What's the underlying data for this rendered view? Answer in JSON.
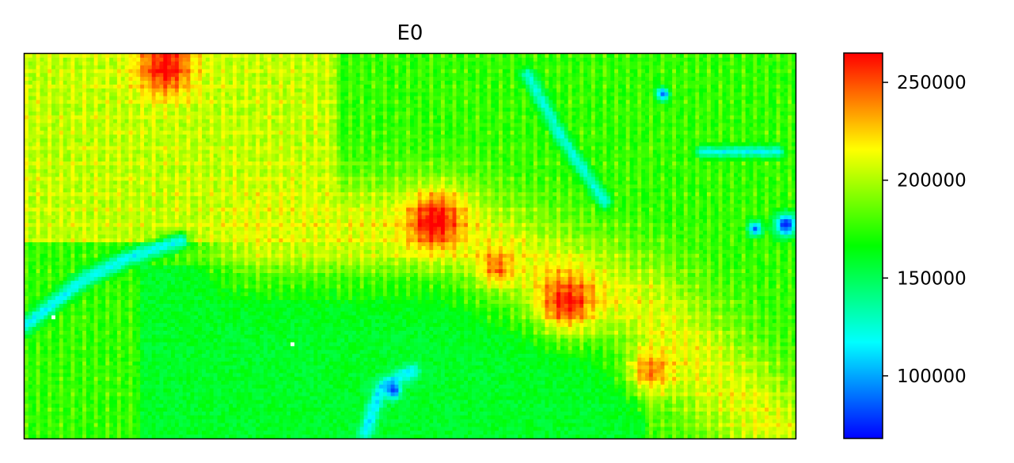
{
  "chart_data": {
    "type": "heatmap",
    "title": "E0",
    "xlabel": "",
    "ylabel": "",
    "x_ticks_visible": false,
    "y_ticks_visible": false,
    "colormap": "gist_rainbow_r",
    "colormap_stops": [
      "#0000ff",
      "#00ffff",
      "#00ff00",
      "#ffff00",
      "#ff0000"
    ],
    "colorbar": {
      "min": 68000,
      "max": 265000,
      "ticks": [
        100000,
        150000,
        200000,
        250000
      ],
      "tick_labels": [
        "100000",
        "150000",
        "200000",
        "250000"
      ]
    },
    "grid": {
      "rows": 100,
      "cols": 200
    },
    "background_value": 172000,
    "features": [
      {
        "kind": "region",
        "desc": "lower-left low basin",
        "c": [
          30,
          160
        ],
        "r": [
          55,
          100
        ],
        "value": 150000
      },
      {
        "kind": "ridge",
        "desc": "upper-left high band",
        "c": [
          0,
          80
        ],
        "r": [
          0,
          48
        ],
        "value": 205000
      },
      {
        "kind": "ridge",
        "desc": "diagonal high corridor",
        "path": [
          [
            60,
            45
          ],
          [
            110,
            45
          ],
          [
            140,
            58
          ],
          [
            160,
            65
          ],
          [
            180,
            85
          ],
          [
            195,
            98
          ]
        ],
        "width": 9,
        "value": 205000
      },
      {
        "kind": "hotspot",
        "c": 36,
        "r": 3,
        "radius": 5,
        "value": 260000
      },
      {
        "kind": "hotspot",
        "c": 106,
        "r": 43,
        "radius": 5,
        "value": 262000
      },
      {
        "kind": "hotspot",
        "c": 140,
        "r": 64,
        "radius": 5,
        "value": 255000
      },
      {
        "kind": "hotspot",
        "c": 122,
        "r": 55,
        "radius": 3,
        "value": 240000
      },
      {
        "kind": "hotspot",
        "c": 162,
        "r": 82,
        "radius": 4,
        "value": 235000
      },
      {
        "kind": "channel",
        "desc": "cyan channel left",
        "path": [
          [
            0,
            70
          ],
          [
            15,
            58
          ],
          [
            28,
            52
          ],
          [
            40,
            48
          ]
        ],
        "width": 1.5,
        "value": 118000
      },
      {
        "kind": "channel",
        "desc": "cyan channel bottom",
        "path": [
          [
            88,
            98
          ],
          [
            92,
            86
          ],
          [
            100,
            82
          ]
        ],
        "width": 1.4,
        "value": 115000
      },
      {
        "kind": "channel",
        "desc": "cyan channel upper right",
        "path": [
          [
            130,
            5
          ],
          [
            138,
            20
          ],
          [
            150,
            38
          ]
        ],
        "width": 1.3,
        "value": 125000
      },
      {
        "kind": "channel",
        "desc": "cyan channel far right",
        "path": [
          [
            175,
            25
          ],
          [
            195,
            25
          ]
        ],
        "width": 1.0,
        "value": 120000
      },
      {
        "kind": "lowspot",
        "c": 197,
        "r": 44,
        "radius": 2,
        "value": 72000
      },
      {
        "kind": "lowspot",
        "c": 95,
        "r": 87,
        "radius": 1.5,
        "value": 80000
      },
      {
        "kind": "lowspot",
        "c": 165,
        "r": 10,
        "radius": 1.2,
        "value": 85000
      },
      {
        "kind": "lowspot",
        "c": 189,
        "r": 45,
        "radius": 1.3,
        "value": 90000
      }
    ],
    "missing_cells": [
      [
        7,
        68
      ],
      [
        69,
        75
      ]
    ]
  }
}
